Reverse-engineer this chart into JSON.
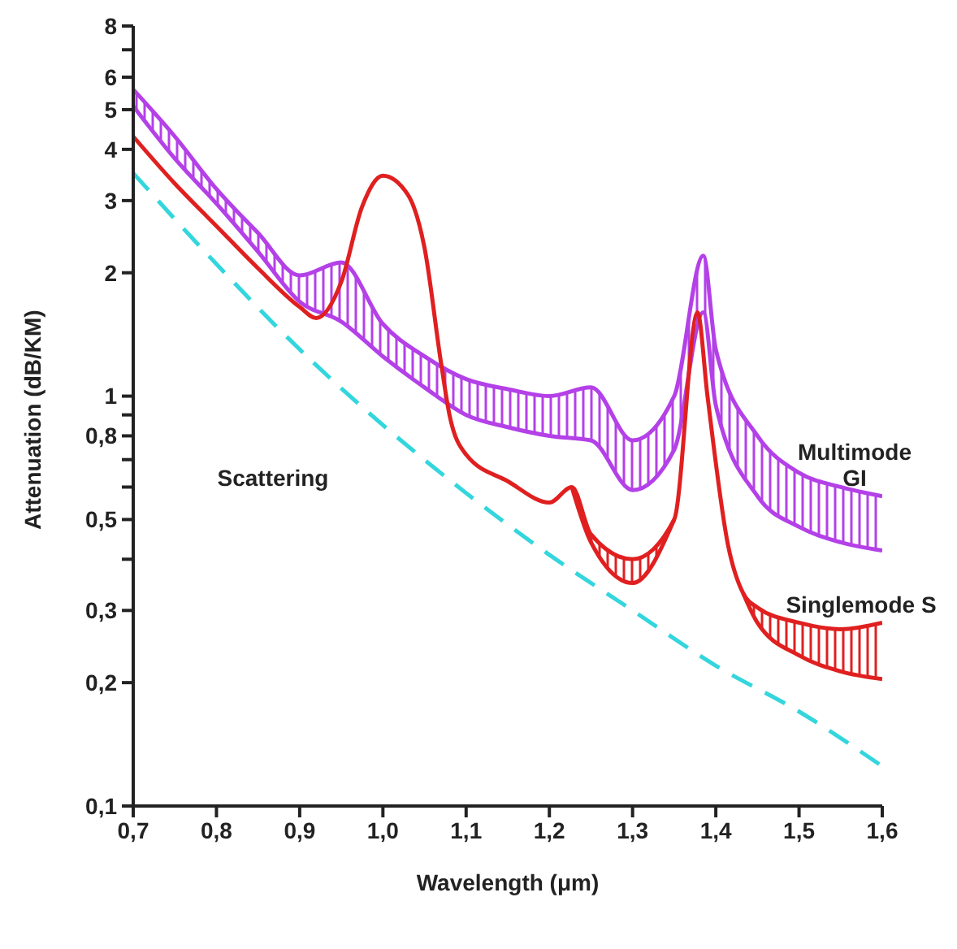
{
  "chart_data": {
    "type": "line",
    "xlabel": "Wavelength (μm)",
    "ylabel": "Attenuation (dB/KM)",
    "log": "y",
    "marker": "none",
    "xlim": [
      0.7,
      1.6
    ],
    "xticks": [
      {
        "value": 0.7,
        "label": "0,7"
      },
      {
        "value": 0.8,
        "label": "0,8"
      },
      {
        "value": 0.9,
        "label": "0,9"
      },
      {
        "value": 1.0,
        "label": "1,0"
      },
      {
        "value": 1.1,
        "label": "1,1"
      },
      {
        "value": 1.2,
        "label": "1,2"
      },
      {
        "value": 1.3,
        "label": "1,3"
      },
      {
        "value": 1.4,
        "label": "1,4"
      },
      {
        "value": 1.5,
        "label": "1,5"
      },
      {
        "value": 1.6,
        "label": "1,6"
      }
    ],
    "ylim": [
      0.1,
      8
    ],
    "yticks": [
      {
        "value": 0.1,
        "label": "0,1"
      },
      {
        "value": 0.2,
        "label": "0,2"
      },
      {
        "value": 0.3,
        "label": "0,3"
      },
      {
        "value": 0.4,
        "label": null
      },
      {
        "value": 0.5,
        "label": "0,5"
      },
      {
        "value": 0.6,
        "label": null
      },
      {
        "value": 0.7,
        "label": null
      },
      {
        "value": 0.8,
        "label": "0,8"
      },
      {
        "value": 0.9,
        "label": null
      },
      {
        "value": 1,
        "label": "1"
      },
      {
        "value": 2,
        "label": "2"
      },
      {
        "value": 3,
        "label": "3"
      },
      {
        "value": 4,
        "label": "4"
      },
      {
        "value": 5,
        "label": "5"
      },
      {
        "value": 6,
        "label": "6"
      },
      {
        "value": 7,
        "label": null
      },
      {
        "value": 8,
        "label": "8"
      }
    ],
    "series": [
      {
        "name": "Multimode GI",
        "color": "#b440e8",
        "line_style": "solid",
        "x": [
          0.7,
          0.75,
          0.8,
          0.85,
          0.9,
          0.95,
          1.0,
          1.05,
          1.1,
          1.15,
          1.2,
          1.25,
          1.3,
          1.35,
          1.385,
          1.4,
          1.45,
          1.5,
          1.55,
          1.6
        ],
        "values": [
          5.6,
          4.3,
          3.2,
          2.5,
          1.97,
          2.12,
          1.5,
          1.25,
          1.1,
          1.04,
          1.0,
          1.05,
          0.78,
          1.0,
          2.2,
          1.3,
          0.8,
          0.65,
          0.6,
          0.57
        ],
        "lower": [
          5.1,
          3.8,
          2.95,
          2.25,
          1.7,
          1.52,
          1.25,
          1.05,
          0.9,
          0.84,
          0.8,
          0.78,
          0.59,
          0.74,
          1.6,
          0.95,
          0.57,
          0.48,
          0.44,
          0.42
        ],
        "upper": [
          5.6,
          4.3,
          3.2,
          2.5,
          1.97,
          2.12,
          1.5,
          1.25,
          1.1,
          1.04,
          1.0,
          1.05,
          0.78,
          1.0,
          2.2,
          1.3,
          0.8,
          0.65,
          0.6,
          0.57
        ]
      },
      {
        "color": "#b440e8",
        "line_style": "solid",
        "x": [
          0.7,
          0.75,
          0.8,
          0.85,
          0.9,
          0.95,
          1.0,
          1.05,
          1.1,
          1.15,
          1.2,
          1.25,
          1.3,
          1.35,
          1.385,
          1.4,
          1.45,
          1.5,
          1.55,
          1.6
        ],
        "values": [
          5.1,
          3.8,
          2.95,
          2.25,
          1.7,
          1.52,
          1.25,
          1.05,
          0.9,
          0.84,
          0.8,
          0.78,
          0.59,
          0.74,
          1.6,
          0.95,
          0.57,
          0.48,
          0.44,
          0.42
        ]
      },
      {
        "name": "Singlemode S",
        "color": "#e02020",
        "line_style": "solid",
        "x": [
          0.7,
          0.75,
          0.8,
          0.85,
          0.9,
          0.92,
          0.95,
          0.975,
          1.0,
          1.03,
          1.05,
          1.07,
          1.08,
          1.1,
          1.15,
          1.2,
          1.227,
          1.25,
          1.3,
          1.35,
          1.378,
          1.39,
          1.415,
          1.433,
          1.45,
          1.5,
          1.55,
          1.6
        ],
        "values": [
          4.3,
          3.3,
          2.6,
          2.05,
          1.65,
          1.55,
          1.9,
          2.9,
          3.45,
          3.1,
          2.3,
          1.2,
          0.9,
          0.72,
          0.62,
          0.55,
          0.6,
          0.46,
          0.4,
          0.5,
          1.6,
          1.0,
          0.43,
          0.33,
          0.305,
          0.28,
          0.27,
          0.28
        ],
        "lower": [
          null,
          null,
          null,
          null,
          null,
          null,
          null,
          null,
          null,
          null,
          null,
          null,
          null,
          null,
          null,
          null,
          0.6,
          0.44,
          0.35,
          0.5,
          null,
          null,
          null,
          0.33,
          0.28,
          0.233,
          0.213,
          0.204
        ],
        "upper": [
          null,
          null,
          null,
          null,
          null,
          null,
          null,
          null,
          null,
          null,
          null,
          null,
          null,
          null,
          null,
          null,
          0.6,
          0.46,
          0.4,
          0.5,
          null,
          null,
          null,
          0.33,
          0.305,
          0.28,
          0.27,
          0.28
        ]
      },
      {
        "color": "#e02020",
        "line_style": "solid",
        "x": [
          1.227,
          1.25,
          1.3,
          1.35,
          1.378,
          1.39,
          1.415,
          1.433,
          1.45,
          1.5,
          1.55,
          1.6
        ],
        "values": [
          0.6,
          0.44,
          0.35,
          0.5,
          null,
          null,
          null,
          0.33,
          0.28,
          0.233,
          0.213,
          0.204
        ]
      },
      {
        "name": "Scattering",
        "color": "#33d6dd",
        "line_style": "dashed",
        "x": [
          0.7,
          0.8,
          0.9,
          1.0,
          1.1,
          1.2,
          1.3,
          1.4,
          1.5,
          1.6
        ],
        "values": [
          3.5,
          2.1,
          1.3,
          0.85,
          0.58,
          0.41,
          0.3,
          0.22,
          0.17,
          0.125
        ]
      }
    ]
  }
}
